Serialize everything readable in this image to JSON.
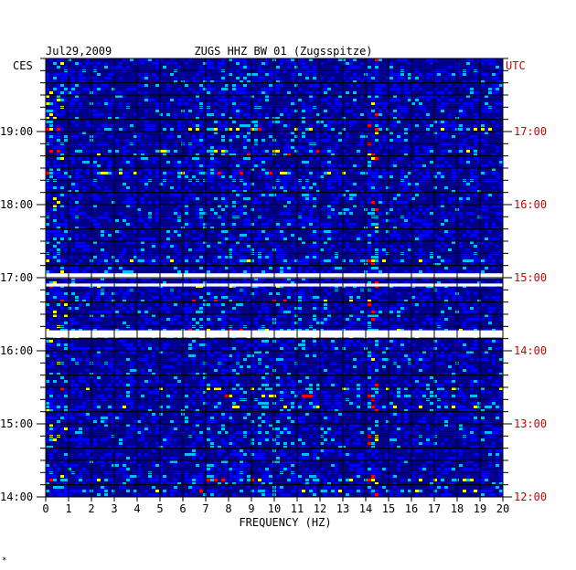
{
  "chart_data": {
    "type": "heatmap",
    "title": "ZUGS HHZ BW 01 (Zugsspitze)",
    "date": "Jul29,2009",
    "left_timezone": "CES",
    "right_timezone": "UTC",
    "xlabel": "FREQUENCY (HZ)",
    "xlim": [
      0,
      20
    ],
    "x_ticks": [
      "0",
      "1",
      "2",
      "3",
      "4",
      "5",
      "6",
      "7",
      "8",
      "9",
      "10",
      "11",
      "12",
      "13",
      "14",
      "15",
      "16",
      "17",
      "18",
      "19",
      "20"
    ],
    "left_time_range": [
      "14:00",
      "20:00"
    ],
    "left_ticks": [
      {
        "label": "14:00",
        "hours": 14
      },
      {
        "label": "15:00",
        "hours": 15
      },
      {
        "label": "16:00",
        "hours": 16
      },
      {
        "label": "17:00",
        "hours": 17
      },
      {
        "label": "18:00",
        "hours": 18
      },
      {
        "label": "19:00",
        "hours": 19
      }
    ],
    "right_ticks": [
      {
        "label": "12:00",
        "hours": 14
      },
      {
        "label": "13:00",
        "hours": 15
      },
      {
        "label": "14:00",
        "hours": 16
      },
      {
        "label": "15:00",
        "hours": 17
      },
      {
        "label": "16:00",
        "hours": 18
      },
      {
        "label": "17:00",
        "hours": 19
      }
    ],
    "data_gaps": [
      {
        "start_hours": 16.18,
        "end_hours": 16.28
      },
      {
        "start_hours": 16.88,
        "end_hours": 16.92
      },
      {
        "start_hours": 16.99,
        "end_hours": 17.06
      }
    ],
    "colormap": [
      "#00008b",
      "#0000ff",
      "#00bfff",
      "#ffff00",
      "#ff0000"
    ],
    "left_label_color": "#000000",
    "right_label_color": "#cc0000",
    "grid": true
  },
  "footer": {
    "mark": "*"
  }
}
